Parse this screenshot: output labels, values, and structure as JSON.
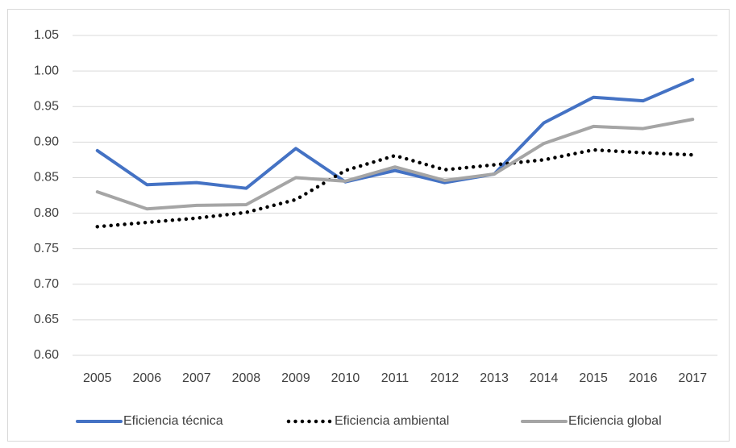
{
  "chart_data": {
    "type": "line",
    "categories": [
      "2005",
      "2006",
      "2007",
      "2008",
      "2009",
      "2010",
      "2011",
      "2012",
      "2013",
      "2014",
      "2015",
      "2016",
      "2017"
    ],
    "series": [
      {
        "name": "Eficiencia técnica",
        "color": "#4472c4",
        "line_style": "solid",
        "values": [
          0.888,
          0.84,
          0.843,
          0.835,
          0.891,
          0.844,
          0.86,
          0.843,
          0.855,
          0.927,
          0.963,
          0.958,
          0.988
        ]
      },
      {
        "name": "Eficiencia ambiental",
        "color": "#000000",
        "line_style": "dotted",
        "values": [
          0.781,
          0.787,
          0.793,
          0.801,
          0.819,
          0.86,
          0.881,
          0.861,
          0.868,
          0.875,
          0.889,
          0.885,
          0.882
        ]
      },
      {
        "name": "Eficiencia global",
        "color": "#a5a5a5",
        "line_style": "solid",
        "values": [
          0.83,
          0.806,
          0.811,
          0.812,
          0.85,
          0.845,
          0.865,
          0.846,
          0.855,
          0.898,
          0.922,
          0.919,
          0.932
        ]
      }
    ],
    "ylim": [
      0.6,
      1.05
    ],
    "yticks": [
      {
        "value": 0.6,
        "label": "0.60"
      },
      {
        "value": 0.65,
        "label": "0.65"
      },
      {
        "value": 0.7,
        "label": "0.70"
      },
      {
        "value": 0.75,
        "label": "0.75"
      },
      {
        "value": 0.8,
        "label": "0.80"
      },
      {
        "value": 0.85,
        "label": "0.85"
      },
      {
        "value": 0.9,
        "label": "0.90"
      },
      {
        "value": 0.95,
        "label": "0.95"
      },
      {
        "value": 1.0,
        "label": "1.00"
      },
      {
        "value": 1.05,
        "label": "1.05"
      }
    ],
    "grid": true,
    "legend": "bottom"
  }
}
